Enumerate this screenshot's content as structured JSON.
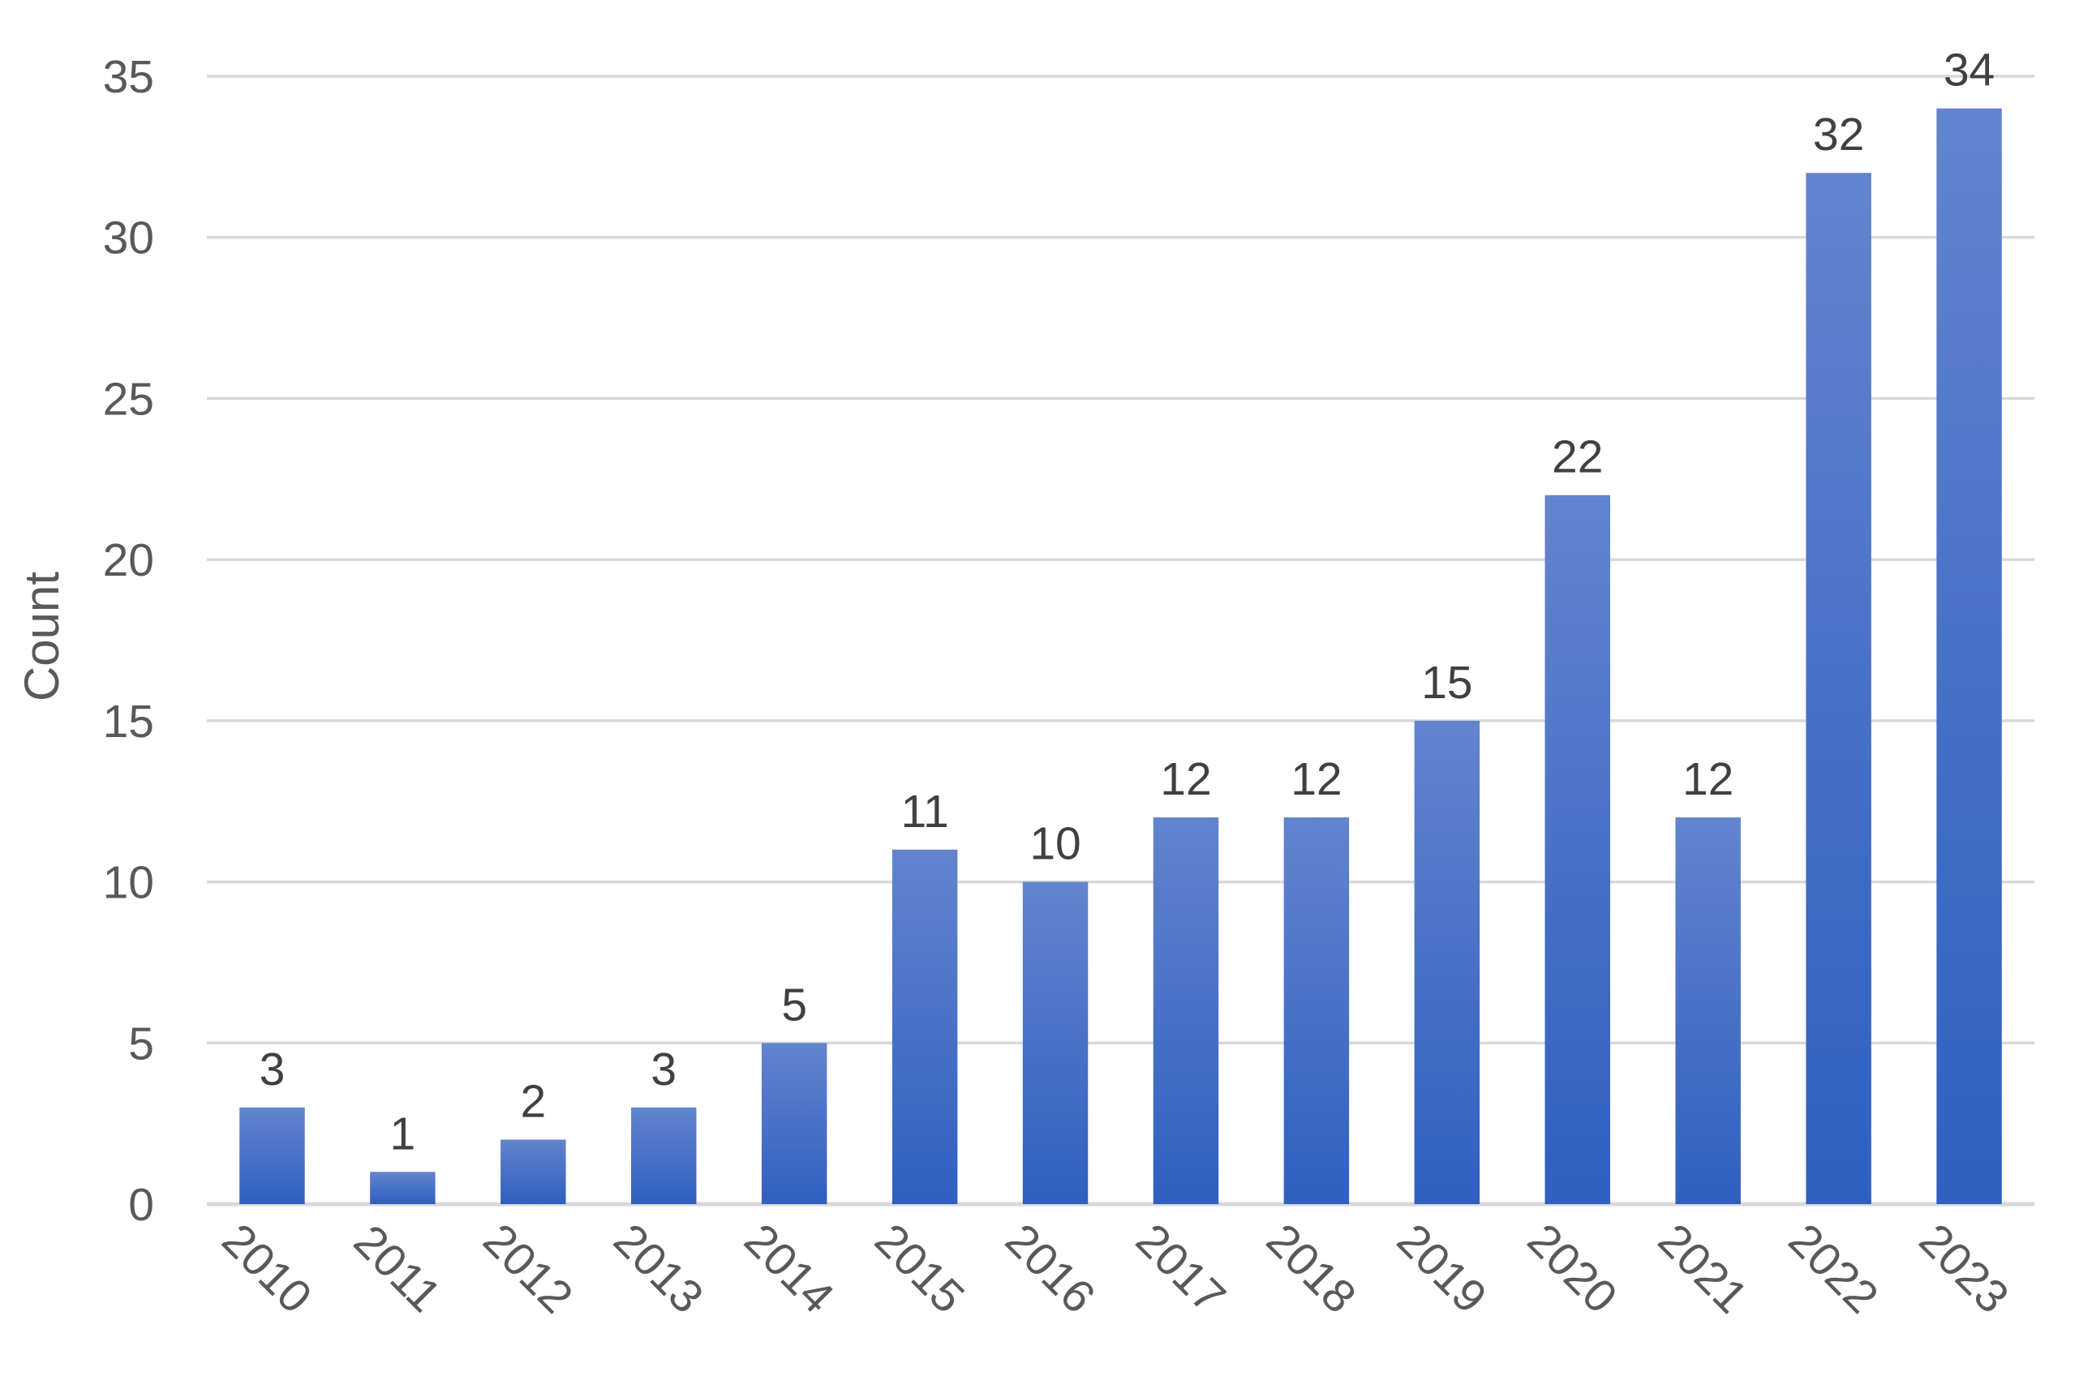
{
  "chart_data": {
    "type": "bar",
    "title": "",
    "xlabel": "",
    "ylabel": "Count",
    "categories": [
      "2010",
      "2011",
      "2012",
      "2013",
      "2014",
      "2015",
      "2016",
      "2017",
      "2018",
      "2019",
      "2020",
      "2021",
      "2022",
      "2023"
    ],
    "values": [
      3,
      1,
      2,
      3,
      5,
      11,
      10,
      12,
      12,
      15,
      22,
      12,
      32,
      34
    ],
    "data_labels": [
      "3",
      "1",
      "2",
      "3",
      "5",
      "11",
      "10",
      "12",
      "12",
      "15",
      "22",
      "12",
      "32",
      "34"
    ],
    "ylim": [
      0,
      35
    ],
    "yticks": [
      0,
      5,
      10,
      15,
      20,
      25,
      30,
      35
    ],
    "ytick_labels": [
      "0",
      "5",
      "10",
      "15",
      "20",
      "25",
      "30",
      "35"
    ],
    "grid": true,
    "legend": "none",
    "colors": {
      "bar_top": "#6384CE",
      "bar_bottom": "#2F5FC0",
      "gridline": "#D9D9D9",
      "axis_line": "#D9D9D9",
      "tick_text": "#595959",
      "label_text": "#404040"
    }
  }
}
